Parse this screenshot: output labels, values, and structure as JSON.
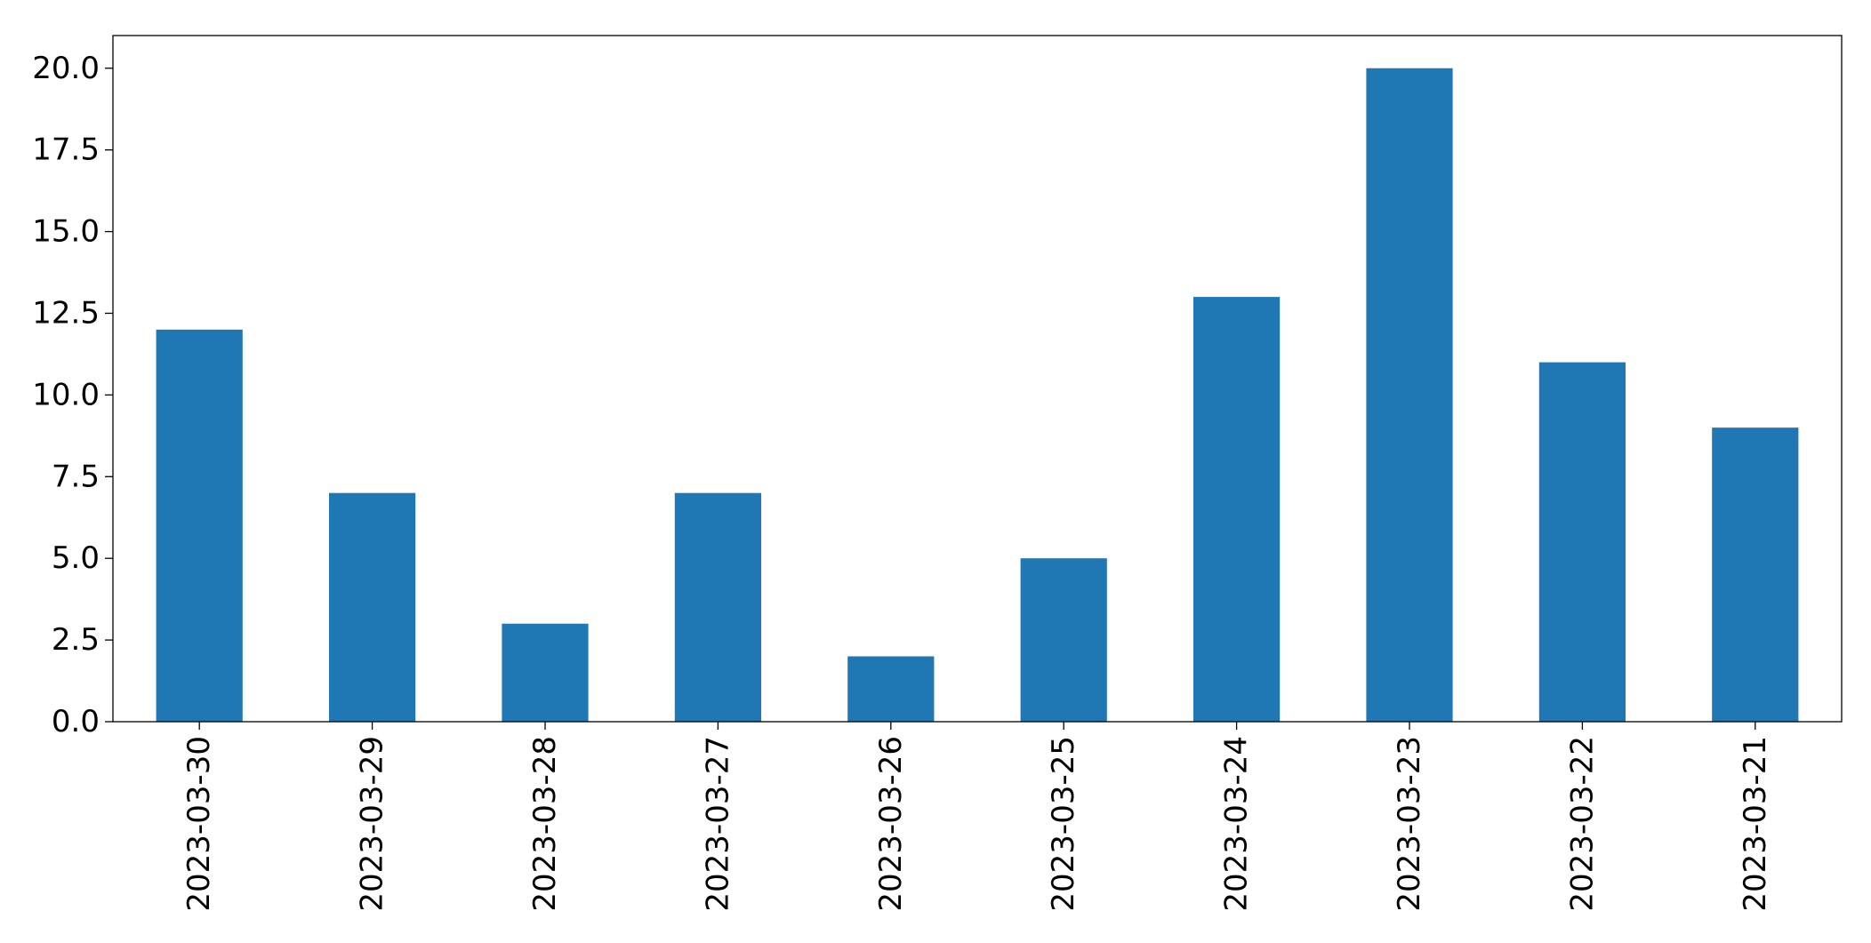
{
  "chart_data": {
    "type": "bar",
    "categories": [
      "2023-03-30",
      "2023-03-29",
      "2023-03-28",
      "2023-03-27",
      "2023-03-26",
      "2023-03-25",
      "2023-03-24",
      "2023-03-23",
      "2023-03-22",
      "2023-03-21"
    ],
    "values": [
      12,
      7,
      3,
      7,
      2,
      5,
      13,
      20,
      11,
      9
    ],
    "ylim": [
      0,
      21
    ],
    "yticks": [
      0,
      2.5,
      5,
      7.5,
      10,
      12.5,
      15,
      17.5,
      20
    ],
    "ytick_labels": [
      "0.0",
      "2.5",
      "5.0",
      "7.5",
      "10.0",
      "12.5",
      "15.0",
      "17.5",
      "20.0"
    ],
    "title": "",
    "xlabel": "",
    "ylabel": "",
    "bar_color": "#1f77b4",
    "grid": false,
    "legend": "none",
    "x_tick_rotation": "vertical"
  }
}
